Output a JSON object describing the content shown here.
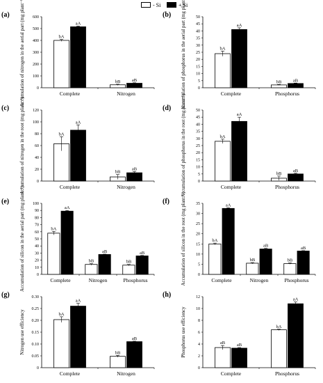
{
  "legend": {
    "items": [
      {
        "label": "- Si",
        "color": "#ffffff"
      },
      {
        "label": "+ Si",
        "color": "#000000"
      }
    ]
  },
  "chart_data": [
    {
      "panel": "(a)",
      "type": "bar",
      "categories": [
        "Complete",
        "Nitrogen"
      ],
      "series": [
        {
          "name": "- Si",
          "values": [
            400,
            25
          ],
          "errors": [
            8,
            5
          ],
          "labels": [
            "bA",
            "bB"
          ]
        },
        {
          "name": "+ Si",
          "values": [
            515,
            38
          ],
          "errors": [
            6,
            4
          ],
          "labels": [
            "aA",
            "aB"
          ]
        }
      ],
      "ylabel": "Accumulation of nitrogen in the aerial part (mg plant⁻¹)",
      "ylim": [
        0,
        600
      ],
      "yticks": [
        0,
        100,
        200,
        300,
        400,
        500,
        600
      ]
    },
    {
      "panel": "(b)",
      "type": "bar",
      "categories": [
        "Complete",
        "Phosphorus"
      ],
      "series": [
        {
          "name": "- Si",
          "values": [
            24,
            2
          ],
          "errors": [
            1.8,
            0.3
          ],
          "labels": [
            "bA",
            "bB"
          ]
        },
        {
          "name": "+ Si",
          "values": [
            41,
            3
          ],
          "errors": [
            1.2,
            0.3
          ],
          "labels": [
            "aA",
            "aB"
          ]
        }
      ],
      "ylabel": "Accumulation of phosphorus in the aerial part (mg plant⁻¹)",
      "ylim": [
        0,
        50
      ],
      "yticks": [
        0,
        5,
        10,
        15,
        20,
        25,
        30,
        35,
        40,
        45,
        50
      ]
    },
    {
      "panel": "(c)",
      "type": "bar",
      "categories": [
        "Complete",
        "Nitrogen"
      ],
      "series": [
        {
          "name": "- Si",
          "values": [
            63,
            7
          ],
          "errors": [
            12,
            4
          ],
          "labels": [
            "bA",
            "bB"
          ]
        },
        {
          "name": "+ Si",
          "values": [
            86,
            14
          ],
          "errors": [
            9,
            2
          ],
          "labels": [
            "aA",
            "aB"
          ]
        }
      ],
      "ylabel": "Accumulation of nitrogen in the root (mg plant⁻¹)",
      "ylim": [
        0,
        120
      ],
      "yticks": [
        0,
        20,
        40,
        60,
        80,
        100,
        120
      ]
    },
    {
      "panel": "(d)",
      "type": "bar",
      "categories": [
        "Complete",
        "Phosphorus"
      ],
      "series": [
        {
          "name": "- Si",
          "values": [
            28,
            2
          ],
          "errors": [
            1.5,
            1.5
          ],
          "labels": [
            "bA",
            "bB"
          ]
        },
        {
          "name": "+ Si",
          "values": [
            42,
            5
          ],
          "errors": [
            3,
            0.5
          ],
          "labels": [
            "aA",
            "aB"
          ]
        }
      ],
      "ylabel": "Accumulation of phosphorus in the root (mg plant⁻¹)",
      "ylim": [
        0,
        50
      ],
      "yticks": [
        0,
        5,
        10,
        15,
        20,
        25,
        30,
        35,
        40,
        45,
        50
      ]
    },
    {
      "panel": "(e)",
      "type": "bar",
      "categories": [
        "Complete",
        "Nitrogen",
        "Phosphorus"
      ],
      "series": [
        {
          "name": "- Si",
          "values": [
            58,
            14,
            13
          ],
          "errors": [
            2.5,
            1,
            1
          ],
          "labels": [
            "bA",
            "bB",
            "bB"
          ]
        },
        {
          "name": "+ Si",
          "values": [
            89,
            28,
            26
          ],
          "errors": [
            1,
            0.5,
            0.7
          ],
          "labels": [
            "aA",
            "aB",
            "aB"
          ]
        }
      ],
      "ylabel": "Accumulation of silicon in the aerial part (mg plant⁻¹)",
      "ylim": [
        0,
        100
      ],
      "yticks": [
        0,
        10,
        20,
        30,
        40,
        50,
        60,
        70,
        80,
        90,
        100
      ]
    },
    {
      "panel": "(f)",
      "type": "bar",
      "categories": [
        "Complete",
        "Nitrogen",
        "Phosphorus"
      ],
      "series": [
        {
          "name": "- Si",
          "values": [
            15,
            5.5,
            5.3
          ],
          "errors": [
            0.4,
            0.3,
            0.3
          ],
          "labels": [
            "bA",
            "bB",
            "bB"
          ]
        },
        {
          "name": "+ Si",
          "values": [
            32.5,
            12.5,
            11.5
          ],
          "errors": [
            0.3,
            0.3,
            0.2
          ],
          "labels": [
            "aA",
            "aB",
            "aB"
          ]
        }
      ],
      "ylabel": "Accumulation of silicon in the root (mg plant⁻¹)",
      "ylim": [
        0,
        35
      ],
      "yticks": [
        0,
        5,
        10,
        15,
        20,
        25,
        30,
        35
      ]
    },
    {
      "panel": "(g)",
      "type": "bar",
      "categories": [
        "Complete",
        "Nitrogen"
      ],
      "series": [
        {
          "name": "- Si",
          "values": [
            0.203,
            0.048
          ],
          "errors": [
            0.012,
            0.004
          ],
          "labels": [
            "bA",
            "bB"
          ]
        },
        {
          "name": "+ Si",
          "values": [
            0.26,
            0.11
          ],
          "errors": [
            0.012,
            0.002
          ],
          "labels": [
            "aA",
            "aB"
          ]
        }
      ],
      "ylabel": "Nitrogen use efficiency",
      "ylim": [
        0,
        0.3
      ],
      "yticks": [
        "0",
        "0.05",
        "0.10",
        "0.15",
        "0.20",
        "0.25",
        "0.30"
      ]
    },
    {
      "panel": "(h)",
      "type": "bar",
      "categories": [
        "Complete",
        "Phosphorus"
      ],
      "series": [
        {
          "name": "- Si",
          "values": [
            3.4,
            6.4
          ],
          "errors": [
            0.35,
            0.1
          ],
          "labels": [
            "aB",
            "bA"
          ]
        },
        {
          "name": "+ Si",
          "values": [
            3.3,
            10.8
          ],
          "errors": [
            0.1,
            0.3
          ],
          "labels": [
            "aB",
            "aA"
          ]
        }
      ],
      "ylabel": "Phosphorus use efficiency",
      "ylim": [
        0,
        12
      ],
      "yticks": [
        0,
        2,
        4,
        6,
        8,
        10,
        12
      ]
    }
  ]
}
